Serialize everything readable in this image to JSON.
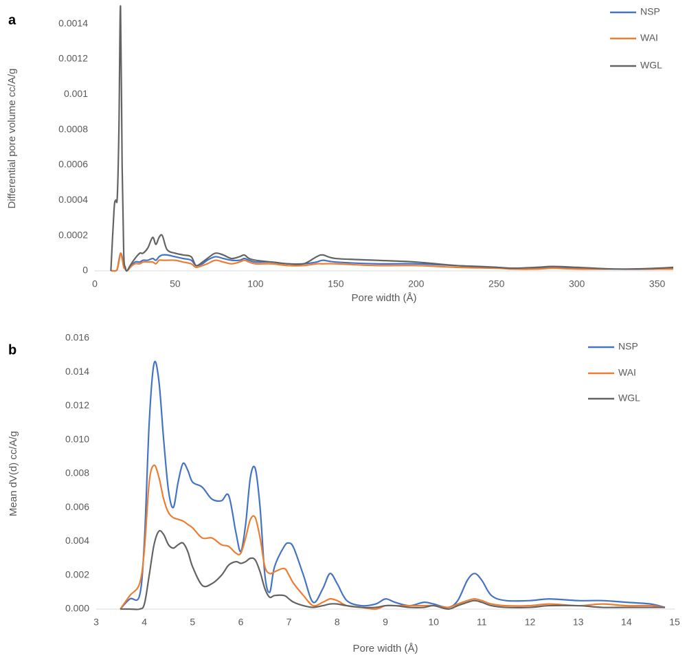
{
  "chart_data": [
    {
      "type": "line",
      "panel": "a",
      "x_label": "Pore width (Å)",
      "y_label": "Differential pore volume cc/A/g",
      "xlim": [
        0,
        360
      ],
      "xticks": [
        0,
        50,
        100,
        150,
        200,
        250,
        300,
        350
      ],
      "ylim": [
        0,
        0.0015
      ],
      "yticks": [
        0,
        0.0002,
        0.0004,
        0.0006,
        0.0008,
        0.001,
        0.0012,
        0.0014
      ],
      "x": [
        10,
        12,
        13,
        14,
        15,
        16,
        17,
        18,
        19,
        20,
        22,
        25,
        28,
        30,
        33,
        36,
        38,
        40,
        42,
        45,
        50,
        55,
        60,
        63,
        67,
        70,
        75,
        80,
        85,
        90,
        93,
        96,
        100,
        110,
        120,
        130,
        138,
        142,
        150,
        175,
        200,
        225,
        250,
        260,
        275,
        285,
        300,
        325,
        350,
        360
      ],
      "series": [
        {
          "name": "NSP",
          "color": "#4472c4",
          "values": [
            0,
            0,
            0,
            1e-05,
            6e-05,
            0.0001,
            8e-05,
            3e-05,
            1e-05,
            0,
            2e-05,
            5e-05,
            5e-05,
            6e-05,
            6e-05,
            7e-05,
            6e-05,
            8e-05,
            9e-05,
            9e-05,
            8e-05,
            7e-05,
            6e-05,
            3e-05,
            4e-05,
            6e-05,
            8e-05,
            7e-05,
            6e-05,
            6e-05,
            7e-05,
            6e-05,
            5e-05,
            5e-05,
            4e-05,
            4e-05,
            5e-05,
            6e-05,
            5e-05,
            4e-05,
            4e-05,
            3e-05,
            2e-05,
            1e-05,
            1.5e-05,
            2e-05,
            1.5e-05,
            1e-05,
            1e-05,
            1.5e-05
          ]
        },
        {
          "name": "WAI",
          "color": "#ed7d31",
          "values": [
            0,
            0,
            0,
            1e-05,
            5e-05,
            0.0001,
            7e-05,
            2e-05,
            1e-05,
            0,
            2e-05,
            4e-05,
            4e-05,
            5e-05,
            5e-05,
            5e-05,
            4e-05,
            6e-05,
            6e-05,
            6e-05,
            6e-05,
            5e-05,
            4e-05,
            2e-05,
            3e-05,
            4e-05,
            6e-05,
            5e-05,
            4e-05,
            5e-05,
            6e-05,
            5e-05,
            4e-05,
            4e-05,
            3e-05,
            3e-05,
            4e-05,
            4e-05,
            4e-05,
            3e-05,
            3e-05,
            2e-05,
            1.5e-05,
            1e-05,
            1e-05,
            1.5e-05,
            1e-05,
            1e-05,
            1e-05,
            1e-05
          ]
        },
        {
          "name": "WGL",
          "color": "#636363",
          "values": [
            0,
            0.00035,
            0.0004,
            0.00042,
            0.0008,
            0.0015,
            0.0006,
            0.0001,
            2e-05,
            0,
            3e-05,
            7e-05,
            0.0001,
            0.0001,
            0.00013,
            0.00019,
            0.00015,
            0.00019,
            0.0002,
            0.00012,
            0.0001,
            9e-05,
            8e-05,
            3e-05,
            5e-05,
            7e-05,
            0.0001,
            9e-05,
            7e-05,
            8e-05,
            9e-05,
            7e-05,
            6e-05,
            5e-05,
            4e-05,
            4e-05,
            8e-05,
            9e-05,
            7e-05,
            6e-05,
            5e-05,
            3e-05,
            2e-05,
            1.5e-05,
            2e-05,
            2.5e-05,
            2e-05,
            1e-05,
            1.5e-05,
            2e-05
          ]
        }
      ]
    },
    {
      "type": "line",
      "panel": "b",
      "x_label": "Pore width (Å)",
      "y_label": "Mean dV(d) cc/A/g",
      "xlim": [
        3,
        15
      ],
      "xticks": [
        3,
        4,
        5,
        6,
        7,
        8,
        9,
        10,
        11,
        12,
        13,
        14,
        15
      ],
      "ylim": [
        0,
        0.016
      ],
      "yticks": [
        {
          "value": 0,
          "label": "0.000"
        },
        {
          "value": 0.002,
          "label": "0.002"
        },
        {
          "value": 0.004,
          "label": "0.004"
        },
        {
          "value": 0.006,
          "label": "0.006"
        },
        {
          "value": 0.008,
          "label": "0.008"
        },
        {
          "value": 0.01,
          "label": "0.010"
        },
        {
          "value": 0.012,
          "label": "0.012"
        },
        {
          "value": 0.014,
          "label": "0.014"
        },
        {
          "value": 0.016,
          "label": "0.016"
        }
      ],
      "x": [
        3.5,
        3.7,
        3.9,
        4.0,
        4.1,
        4.2,
        4.3,
        4.4,
        4.5,
        4.6,
        4.7,
        4.8,
        4.9,
        5.0,
        5.2,
        5.4,
        5.6,
        5.75,
        5.9,
        6.0,
        6.1,
        6.2,
        6.3,
        6.4,
        6.5,
        6.6,
        6.7,
        6.9,
        7.0,
        7.1,
        7.3,
        7.5,
        7.7,
        7.85,
        8.0,
        8.2,
        8.5,
        8.8,
        9.0,
        9.2,
        9.5,
        9.8,
        10.0,
        10.3,
        10.5,
        10.7,
        10.85,
        11.0,
        11.2,
        11.5,
        12.0,
        12.4,
        13.0,
        13.5,
        14.0,
        14.5,
        14.8
      ],
      "series": [
        {
          "name": "NSP",
          "color": "#4472c4",
          "values": [
            0,
            0.0006,
            0.0008,
            0.004,
            0.011,
            0.0145,
            0.0135,
            0.01,
            0.007,
            0.006,
            0.0075,
            0.0086,
            0.0082,
            0.0075,
            0.0072,
            0.0065,
            0.0064,
            0.0067,
            0.0045,
            0.0034,
            0.005,
            0.0078,
            0.0083,
            0.006,
            0.002,
            0.001,
            0.0025,
            0.0037,
            0.0039,
            0.0036,
            0.002,
            0.0004,
            0.0012,
            0.0021,
            0.0015,
            0.0005,
            0.0002,
            0.0003,
            0.0006,
            0.0004,
            0.0002,
            0.0004,
            0.0003,
            0.0001,
            0.0005,
            0.0017,
            0.0021,
            0.0017,
            0.0008,
            0.0005,
            0.0005,
            0.0006,
            0.0005,
            0.0005,
            0.0004,
            0.0003,
            0.0001
          ]
        },
        {
          "name": "WAI",
          "color": "#ed7d31",
          "values": [
            0,
            0.0008,
            0.0015,
            0.0035,
            0.0075,
            0.0085,
            0.0078,
            0.0065,
            0.0057,
            0.0054,
            0.0053,
            0.0052,
            0.005,
            0.0048,
            0.0042,
            0.0042,
            0.0038,
            0.0037,
            0.0033,
            0.0033,
            0.0042,
            0.0053,
            0.0054,
            0.0042,
            0.0025,
            0.0021,
            0.0022,
            0.0024,
            0.002,
            0.0015,
            0.0008,
            0.0002,
            0.0004,
            0.0006,
            0.0005,
            0.0002,
            0.0001,
            0,
            0.0002,
            0.0002,
            0.0002,
            0.0002,
            0.0002,
            0.0001,
            0.0003,
            0.0005,
            0.0006,
            0.0005,
            0.0003,
            0.0002,
            0.0002,
            0.0003,
            0.0002,
            0.0003,
            0.0002,
            0.0002,
            0.0001
          ]
        },
        {
          "name": "WGL",
          "color": "#636363",
          "values": [
            0,
            0,
            0,
            0.0003,
            0.002,
            0.0038,
            0.0046,
            0.0044,
            0.0038,
            0.0036,
            0.0038,
            0.0039,
            0.0034,
            0.0025,
            0.0014,
            0.0015,
            0.002,
            0.0026,
            0.0028,
            0.0027,
            0.0028,
            0.003,
            0.0029,
            0.0022,
            0.0012,
            0.0007,
            0.0008,
            0.0008,
            0.0006,
            0.0004,
            0.0002,
            0.0001,
            0.0002,
            0.0003,
            0.0003,
            0.0002,
            0.0001,
            0.0001,
            0.0002,
            0.0002,
            0.0001,
            0.0001,
            0.0002,
            0,
            0.0002,
            0.0004,
            0.0005,
            0.0004,
            0.0002,
            0.0001,
            0.0001,
            0.0002,
            0.0002,
            0.0001,
            0.0001,
            0.0001,
            0.0001
          ]
        }
      ]
    }
  ]
}
